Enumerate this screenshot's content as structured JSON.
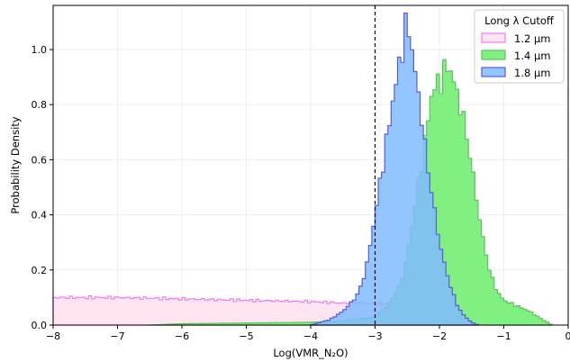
{
  "chart_data": {
    "type": "histogram",
    "xlabel": "Log(VMR_N₂O)",
    "ylabel": "Probability Density",
    "xlim": [
      -8,
      0
    ],
    "ylim": [
      0,
      1.16
    ],
    "x_ticks": [
      -8,
      -7,
      -6,
      -5,
      -4,
      -3,
      -2,
      -1,
      0
    ],
    "x_tick_labels": [
      "−8",
      "−7",
      "−6",
      "−5",
      "−4",
      "−3",
      "−2",
      "−1",
      "0"
    ],
    "y_ticks": [
      0,
      0.2,
      0.4,
      0.6,
      0.8,
      1.0
    ],
    "y_tick_labels": [
      "0.0",
      "0.2",
      "0.4",
      "0.6",
      "0.8",
      "1.0"
    ],
    "grid": true,
    "reference_line": {
      "x": -3.0,
      "style": "dashed",
      "color": "#000000"
    },
    "legend": {
      "title": "Long λ Cutoff",
      "placement": "top-right",
      "entries": [
        "1.2 µm",
        "1.4 µm",
        "1.8 µm"
      ]
    },
    "series": [
      {
        "name": "1.2 µm",
        "fill": "#ffe0ee",
        "stroke": "#f07cf0",
        "fill_opacity": 0.85,
        "points": [
          [
            -8.0,
            0.1
          ],
          [
            -7.0,
            0.1
          ],
          [
            -6.0,
            0.095
          ],
          [
            -5.0,
            0.09
          ],
          [
            -4.0,
            0.085
          ],
          [
            -3.5,
            0.08
          ],
          [
            -3.0,
            0.08
          ],
          [
            -2.5,
            0.075
          ],
          [
            -2.0,
            0.07
          ],
          [
            -1.5,
            0.06
          ],
          [
            -1.0,
            0.04
          ],
          [
            -0.5,
            0.02
          ],
          [
            -0.3,
            0.0
          ]
        ]
      },
      {
        "name": "1.4 µm",
        "fill": "#80f080",
        "stroke": "#5cc45c",
        "fill_opacity": 1.0,
        "points": [
          [
            -6.5,
            0.0
          ],
          [
            -6.0,
            0.005
          ],
          [
            -4.0,
            0.01
          ],
          [
            -3.5,
            0.015
          ],
          [
            -3.0,
            0.03
          ],
          [
            -2.8,
            0.07
          ],
          [
            -2.6,
            0.15
          ],
          [
            -2.5,
            0.25
          ],
          [
            -2.4,
            0.4
          ],
          [
            -2.3,
            0.55
          ],
          [
            -2.2,
            0.7
          ],
          [
            -2.15,
            0.8
          ],
          [
            -2.1,
            0.86
          ],
          [
            -2.0,
            0.88
          ],
          [
            -1.9,
            0.93
          ],
          [
            -1.85,
            0.95
          ],
          [
            -1.8,
            0.9
          ],
          [
            -1.7,
            0.82
          ],
          [
            -1.6,
            0.72
          ],
          [
            -1.5,
            0.58
          ],
          [
            -1.4,
            0.42
          ],
          [
            -1.3,
            0.28
          ],
          [
            -1.2,
            0.18
          ],
          [
            -1.1,
            0.12
          ],
          [
            -1.0,
            0.09
          ],
          [
            -0.8,
            0.07
          ],
          [
            -0.6,
            0.05
          ],
          [
            -0.4,
            0.02
          ],
          [
            -0.25,
            0.0
          ]
        ]
      },
      {
        "name": "1.8 µm",
        "fill": "#80bbff",
        "stroke": "#5a5ae0",
        "fill_opacity": 0.85,
        "points": [
          [
            -4.0,
            0.0
          ],
          [
            -3.7,
            0.02
          ],
          [
            -3.5,
            0.05
          ],
          [
            -3.3,
            0.1
          ],
          [
            -3.2,
            0.15
          ],
          [
            -3.1,
            0.25
          ],
          [
            -3.0,
            0.4
          ],
          [
            -2.9,
            0.55
          ],
          [
            -2.8,
            0.7
          ],
          [
            -2.7,
            0.85
          ],
          [
            -2.6,
            0.97
          ],
          [
            -2.55,
            1.05
          ],
          [
            -2.5,
            1.1
          ],
          [
            -2.45,
            1.05
          ],
          [
            -2.4,
            0.95
          ],
          [
            -2.3,
            0.8
          ],
          [
            -2.2,
            0.6
          ],
          [
            -2.1,
            0.45
          ],
          [
            -2.0,
            0.3
          ],
          [
            -1.9,
            0.2
          ],
          [
            -1.8,
            0.12
          ],
          [
            -1.7,
            0.06
          ],
          [
            -1.6,
            0.03
          ],
          [
            -1.5,
            0.01
          ],
          [
            -1.4,
            0.0
          ]
        ]
      }
    ]
  }
}
